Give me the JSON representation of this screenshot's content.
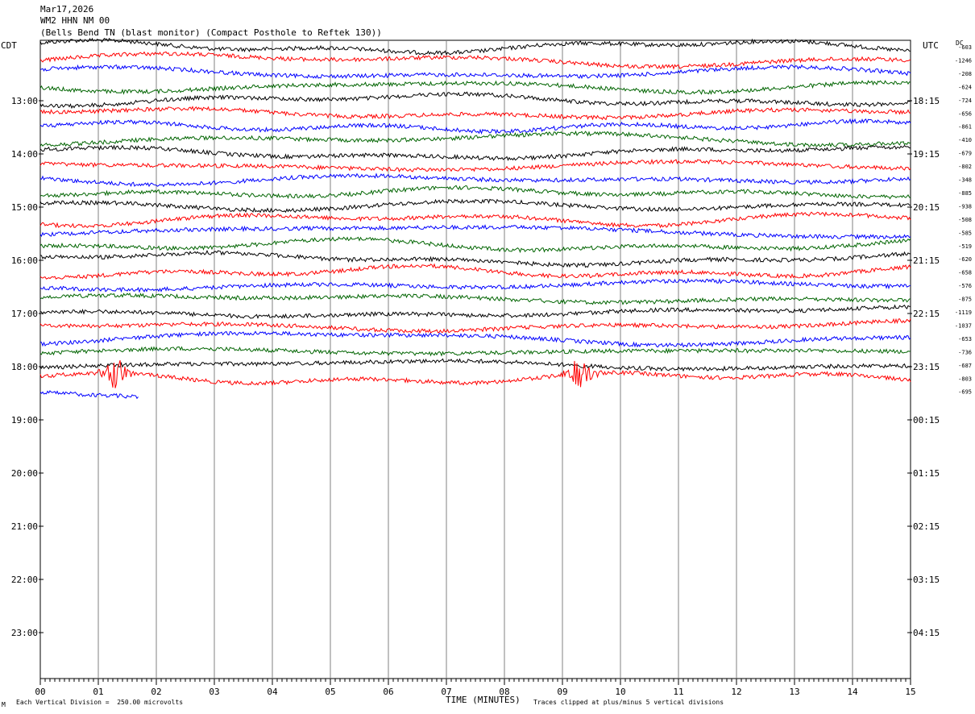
{
  "header": {
    "date": "Mar17,2026",
    "station": "WM2 HHN NM 00",
    "description": "(Bells Bend TN (blast monitor) (Compact Posthole to Reftek 130))"
  },
  "left_zone_label": "CDT",
  "right_zone_label": "UTC",
  "dc_label": "DC",
  "footer": {
    "corner_mark": "M",
    "scale_note": "Each Vertical Division =  250.00 microvolts",
    "xaxis_title": "TIME (MINUTES)",
    "clip_note": "Traces clipped at plus/minus 5 vertical divisions"
  },
  "colors": {
    "black": "#000000",
    "red": "#ff0000",
    "blue": "#0000ff",
    "green": "#006400",
    "grid": "#808080"
  },
  "chart_data": {
    "type": "line",
    "xlabel": "TIME (MINUTES)",
    "x_ticks": [
      "00",
      "01",
      "02",
      "03",
      "04",
      "05",
      "06",
      "07",
      "08",
      "09",
      "10",
      "11",
      "12",
      "13",
      "14",
      "15"
    ],
    "xlim": [
      0,
      15
    ],
    "left_hour_labels": [
      "13:00",
      "14:00",
      "15:00",
      "16:00",
      "17:00",
      "18:00",
      "19:00",
      "20:00",
      "21:00",
      "22:00",
      "23:00"
    ],
    "right_hour_labels": [
      "18:15",
      "19:15",
      "20:15",
      "21:15",
      "22:15",
      "23:15",
      "00:15",
      "01:15",
      "02:15",
      "03:15",
      "04:15"
    ],
    "trace_colors": [
      "black",
      "red",
      "blue",
      "green"
    ],
    "dc_offsets": [
      "-603",
      "-1246",
      "-208",
      "-624",
      "-724",
      "-656",
      "-861",
      "-410",
      "-679",
      "-802",
      "-348",
      "-885",
      "-938",
      "-508",
      "-585",
      "-519",
      "-620",
      "-658",
      "-576",
      "-875",
      "-1119",
      "-1037",
      "-653",
      "-736",
      "-687",
      "-803",
      "-695"
    ],
    "traces_count": 27,
    "last_trace_end_minute": 1.7,
    "events": [
      {
        "trace_index": 25,
        "minute": 1.3,
        "label": ""
      },
      {
        "trace_index": 25,
        "minute": 9.3,
        "label": ""
      }
    ]
  }
}
